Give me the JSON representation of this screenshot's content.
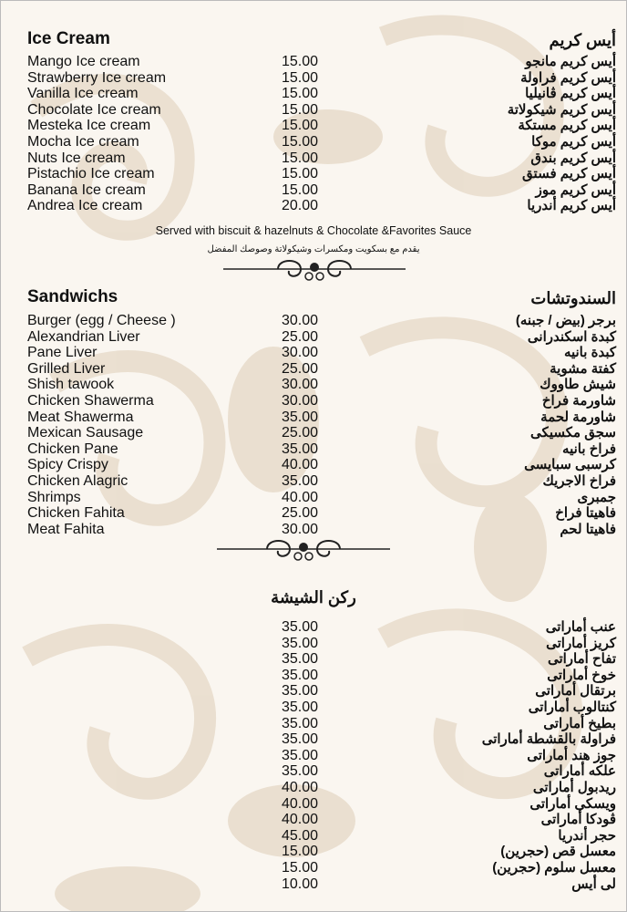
{
  "colors": {
    "background": "#faf6f0",
    "pattern": "#e8dccb",
    "text": "#111111"
  },
  "ice_cream": {
    "title_en": "Ice Cream",
    "title_ar": "أيس كريم",
    "items": [
      {
        "en": "Mango Ice cream",
        "price": "15.00",
        "ar": "أيس كريم مانجو"
      },
      {
        "en": "Strawberry Ice cream",
        "price": "15.00",
        "ar": "أيس كريم فراولة"
      },
      {
        "en": "Vanilla Ice cream",
        "price": "15.00",
        "ar": "أيس كريم ڤانيليا"
      },
      {
        "en": "Chocolate Ice cream",
        "price": "15.00",
        "ar": "أيس كريم شيكولاتة"
      },
      {
        "en": "Mesteka Ice cream",
        "price": "15.00",
        "ar": "أيس كريم مستكة"
      },
      {
        "en": "Mocha Ice cream",
        "price": "15.00",
        "ar": "أيس كريم موكا"
      },
      {
        "en": "Nuts Ice cream",
        "price": "15.00",
        "ar": "أيس كريم بندق"
      },
      {
        "en": "Pistachio Ice cream",
        "price": "15.00",
        "ar": "أيس كريم فستق"
      },
      {
        "en": "Banana Ice cream",
        "price": "15.00",
        "ar": "أيس كريم موز"
      },
      {
        "en": "Andrea Ice cream",
        "price": "20.00",
        "ar": "أيس كريم أندريا"
      }
    ],
    "note_en": "Served with biscuit & hazelnuts & Chocolate &Favorites Sauce",
    "note_ar": "يقدم مع بسكويت ومكسرات وشيكولاتة وصوصك المفضل"
  },
  "sandwiches": {
    "title_en": "Sandwichs",
    "title_ar": "السندوتشات",
    "items": [
      {
        "en": "Burger (egg / Cheese )",
        "price": "30.00",
        "ar": "برجر (بيض / جبنه)"
      },
      {
        "en": "Alexandrian Liver",
        "price": "25.00",
        "ar": "كبدة اسكندرانى"
      },
      {
        "en": "Pane Liver",
        "price": "30.00",
        "ar": "كبدة بانيه"
      },
      {
        "en": "Grilled Liver",
        "price": "25.00",
        "ar": "كفتة مشوية"
      },
      {
        "en": "Shish tawook",
        "price": "30.00",
        "ar": "شيش طاووك"
      },
      {
        "en": "Chicken Shawerma",
        "price": "30.00",
        "ar": "شاورمة فراخ"
      },
      {
        "en": "Meat Shawerma",
        "price": "35.00",
        "ar": "شاورمة لحمة"
      },
      {
        "en": "Mexican Sausage",
        "price": "25.00",
        "ar": "سجق مكسيكى"
      },
      {
        "en": "Chicken Pane",
        "price": "35.00",
        "ar": "فراخ بانيه"
      },
      {
        "en": "Spicy Crispy",
        "price": "40.00",
        "ar": "كرسبى سبايسى"
      },
      {
        "en": "Chicken Alagric",
        "price": "35.00",
        "ar": "فراخ الاجريك"
      },
      {
        "en": "Shrimps",
        "price": "40.00",
        "ar": "جمبرى"
      },
      {
        "en": "Chicken Fahita",
        "price": "25.00",
        "ar": "فاهيتا فراخ"
      },
      {
        "en": "Meat Fahita",
        "price": "30.00",
        "ar": "فاهيتا لحم"
      }
    ]
  },
  "shisha": {
    "title_ar": "ركن الشيشة",
    "items": [
      {
        "price": "35.00",
        "ar": "عنب أماراتى"
      },
      {
        "price": "35.00",
        "ar": "كريز أماراتى"
      },
      {
        "price": "35.00",
        "ar": "تفاح أماراتى"
      },
      {
        "price": "35.00",
        "ar": "خوخ أماراتى"
      },
      {
        "price": "35.00",
        "ar": "برتقال أماراتى"
      },
      {
        "price": "35.00",
        "ar": "كنتالوب أماراتى"
      },
      {
        "price": "35.00",
        "ar": "بطيخ أماراتى"
      },
      {
        "price": "35.00",
        "ar": "فراولة بالقشطة أماراتى"
      },
      {
        "price": "35.00",
        "ar": "جوز هند أماراتى"
      },
      {
        "price": "35.00",
        "ar": "علكه أماراتى"
      },
      {
        "price": "40.00",
        "ar": "ريدبول أماراتى"
      },
      {
        "price": "40.00",
        "ar": "ويسكى أماراتى"
      },
      {
        "price": "40.00",
        "ar": "ڤودكا أماراتى"
      },
      {
        "price": "45.00",
        "ar": "حجر أندريا"
      },
      {
        "price": "15.00",
        "ar": "معسل قص (حجرين)"
      },
      {
        "price": "15.00",
        "ar": "معسل سلوم (حجرين)"
      },
      {
        "price": "10.00",
        "ar": "لى أيس"
      }
    ]
  }
}
